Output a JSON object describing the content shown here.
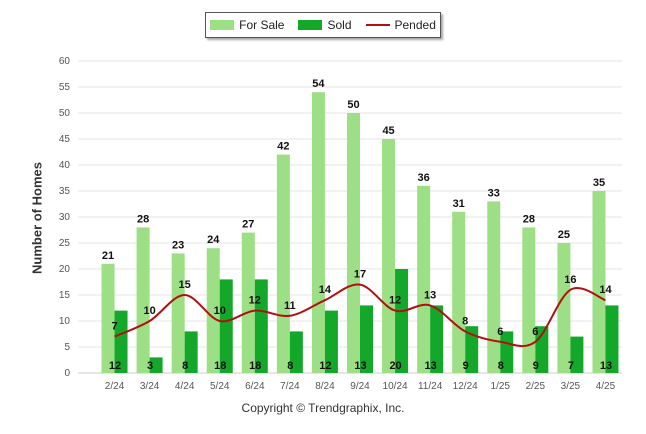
{
  "legend": {
    "for_sale": "For Sale",
    "sold": "Sold",
    "pended": "Pended"
  },
  "copyright": "Copyright © Trendgraphix, Inc.",
  "colors": {
    "for_sale": "#9ddf84",
    "sold": "#14a82a",
    "pended": "#b01010",
    "grid": "#e6e6e6",
    "axis_text": "#555555"
  },
  "chart_data": {
    "type": "bar",
    "ylabel": "Number of Homes",
    "xlabel": "",
    "ylim": [
      0,
      60
    ],
    "yticks": [
      0,
      5,
      10,
      15,
      20,
      25,
      30,
      35,
      40,
      45,
      50,
      55,
      60
    ],
    "grid": true,
    "legend_position": "top-center",
    "categories": [
      "2/24",
      "3/24",
      "4/24",
      "5/24",
      "6/24",
      "7/24",
      "8/24",
      "9/24",
      "10/24",
      "11/24",
      "12/24",
      "1/25",
      "2/25",
      "3/25",
      "4/25"
    ],
    "series": [
      {
        "name": "For Sale",
        "type": "bar",
        "values": [
          21,
          28,
          23,
          24,
          27,
          42,
          54,
          50,
          45,
          36,
          31,
          33,
          28,
          25,
          35
        ]
      },
      {
        "name": "Sold",
        "type": "bar",
        "values": [
          12,
          3,
          8,
          18,
          18,
          8,
          12,
          13,
          20,
          13,
          9,
          8,
          9,
          7,
          13
        ]
      },
      {
        "name": "Pended",
        "type": "line",
        "values": [
          7,
          10,
          15,
          10,
          12,
          11,
          14,
          17,
          12,
          13,
          8,
          6,
          6,
          16,
          14
        ]
      }
    ]
  }
}
